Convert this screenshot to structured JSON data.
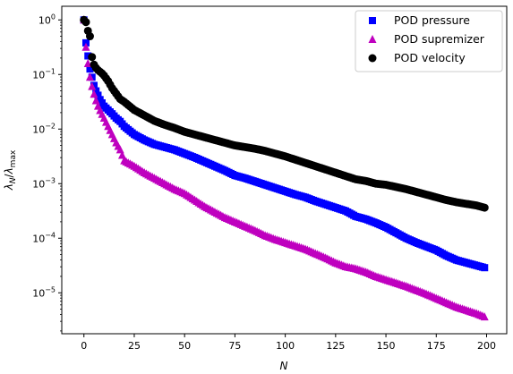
{
  "chart_data": {
    "type": "scatter",
    "title": "",
    "xlabel": "N",
    "ylabel_main": "λ",
    "ylabel_sub1": "N",
    "ylabel_sub2": "max",
    "xlim": [
      -11,
      210
    ],
    "ylim_log10": [
      -5.75,
      0.25
    ],
    "y_scale": "log",
    "grid": false,
    "legend_position": "upper right",
    "x_ticks": [
      {
        "value": 0,
        "label": "0"
      },
      {
        "value": 25,
        "label": "25"
      },
      {
        "value": 50,
        "label": "50"
      },
      {
        "value": 75,
        "label": "75"
      },
      {
        "value": 100,
        "label": "100"
      },
      {
        "value": 125,
        "label": "125"
      },
      {
        "value": 150,
        "label": "150"
      },
      {
        "value": 175,
        "label": "175"
      },
      {
        "value": 200,
        "label": "200"
      }
    ],
    "y_ticks": [
      {
        "exp": 0,
        "base": "10",
        "sup": "0"
      },
      {
        "exp": -1,
        "base": "10",
        "sup": "−1"
      },
      {
        "exp": -2,
        "base": "10",
        "sup": "−2"
      },
      {
        "exp": -3,
        "base": "10",
        "sup": "−3"
      },
      {
        "exp": -4,
        "base": "10",
        "sup": "−4"
      },
      {
        "exp": -5,
        "base": "10",
        "sup": "−5"
      }
    ],
    "series": [
      {
        "name": "POD pressure",
        "marker": "square",
        "color": "#0000ff",
        "x": [
          0,
          1,
          2,
          3,
          4,
          5,
          6,
          7,
          8,
          9,
          10,
          12,
          14,
          16,
          18,
          20,
          25,
          30,
          35,
          40,
          45,
          50,
          55,
          60,
          65,
          70,
          75,
          80,
          85,
          90,
          95,
          100,
          105,
          110,
          115,
          120,
          125,
          130,
          135,
          140,
          145,
          150,
          155,
          160,
          165,
          170,
          175,
          180,
          185,
          190,
          195,
          199
        ],
        "log10_y": [
          0,
          -0.42,
          -0.66,
          -0.9,
          -1.05,
          -1.2,
          -1.3,
          -1.38,
          -1.46,
          -1.52,
          -1.58,
          -1.65,
          -1.72,
          -1.8,
          -1.86,
          -1.95,
          -2.1,
          -2.2,
          -2.28,
          -2.33,
          -2.38,
          -2.45,
          -2.52,
          -2.6,
          -2.68,
          -2.76,
          -2.85,
          -2.9,
          -2.96,
          -3.02,
          -3.08,
          -3.14,
          -3.2,
          -3.25,
          -3.32,
          -3.38,
          -3.44,
          -3.5,
          -3.6,
          -3.65,
          -3.72,
          -3.8,
          -3.9,
          -4.0,
          -4.08,
          -4.15,
          -4.22,
          -4.32,
          -4.4,
          -4.45,
          -4.5,
          -4.54
        ]
      },
      {
        "name": "POD supremizer",
        "marker": "triangle",
        "color": "#bf00bf",
        "x": [
          0,
          1,
          2,
          3,
          4,
          5,
          6,
          7,
          8,
          9,
          10,
          12,
          14,
          16,
          18,
          20,
          25,
          30,
          35,
          40,
          45,
          50,
          55,
          60,
          65,
          70,
          75,
          80,
          85,
          90,
          95,
          100,
          105,
          110,
          115,
          120,
          125,
          130,
          135,
          140,
          145,
          150,
          155,
          160,
          165,
          170,
          175,
          180,
          185,
          190,
          195,
          199
        ],
        "log10_y": [
          0,
          -0.5,
          -0.8,
          -1.05,
          -1.22,
          -1.36,
          -1.48,
          -1.58,
          -1.66,
          -1.73,
          -1.8,
          -1.95,
          -2.1,
          -2.25,
          -2.38,
          -2.58,
          -2.68,
          -2.8,
          -2.9,
          -3.0,
          -3.1,
          -3.18,
          -3.3,
          -3.42,
          -3.52,
          -3.62,
          -3.7,
          -3.78,
          -3.86,
          -3.95,
          -4.02,
          -4.08,
          -4.14,
          -4.2,
          -4.28,
          -4.36,
          -4.45,
          -4.52,
          -4.56,
          -4.62,
          -4.7,
          -4.76,
          -4.82,
          -4.88,
          -4.95,
          -5.02,
          -5.1,
          -5.18,
          -5.26,
          -5.32,
          -5.38,
          -5.44
        ]
      },
      {
        "name": "POD velocity",
        "marker": "circle",
        "color": "#000000",
        "x": [
          0,
          1,
          2,
          3,
          4,
          5,
          6,
          7,
          8,
          9,
          10,
          12,
          14,
          16,
          18,
          20,
          25,
          30,
          35,
          40,
          45,
          50,
          55,
          60,
          65,
          70,
          75,
          80,
          85,
          90,
          95,
          100,
          105,
          110,
          115,
          120,
          125,
          130,
          135,
          140,
          145,
          150,
          155,
          160,
          165,
          170,
          175,
          180,
          185,
          190,
          195,
          199
        ],
        "log10_y": [
          0,
          -0.04,
          -0.2,
          -0.3,
          -0.68,
          -0.82,
          -0.88,
          -0.92,
          -0.95,
          -0.98,
          -1.02,
          -1.12,
          -1.25,
          -1.35,
          -1.45,
          -1.5,
          -1.65,
          -1.75,
          -1.85,
          -1.92,
          -1.98,
          -2.05,
          -2.1,
          -2.15,
          -2.2,
          -2.25,
          -2.3,
          -2.33,
          -2.36,
          -2.4,
          -2.45,
          -2.5,
          -2.56,
          -2.62,
          -2.68,
          -2.74,
          -2.8,
          -2.86,
          -2.92,
          -2.95,
          -3.0,
          -3.02,
          -3.06,
          -3.1,
          -3.15,
          -3.2,
          -3.25,
          -3.3,
          -3.34,
          -3.37,
          -3.4,
          -3.44
        ]
      }
    ]
  }
}
